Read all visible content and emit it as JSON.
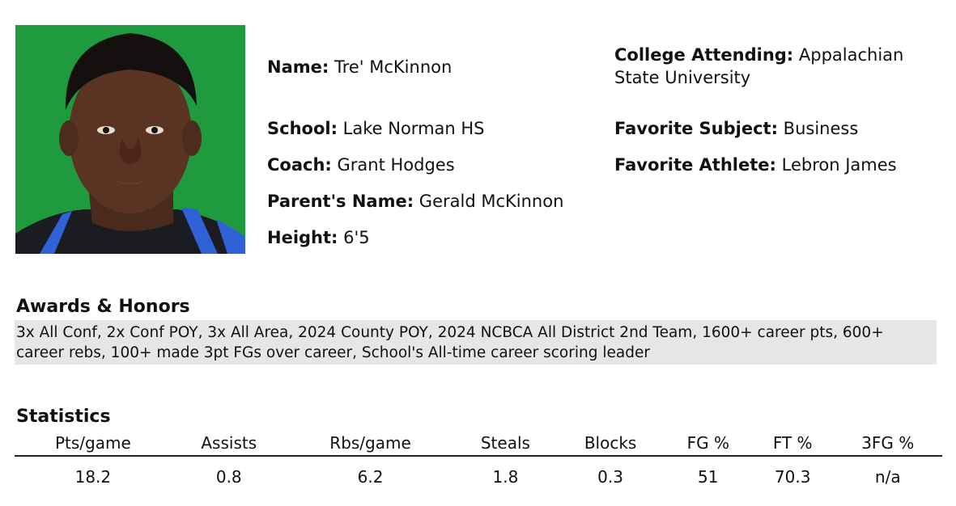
{
  "profile": {
    "name_label": "Name:",
    "name_value": "Tre' McKinnon",
    "school_label": "School:",
    "school_value": "Lake Norman HS",
    "coach_label": "Coach:",
    "coach_value": "Grant Hodges",
    "parent_label": "Parent's Name:",
    "parent_value": "Gerald McKinnon",
    "height_label": "Height:",
    "height_value": "6'5",
    "college_label": "College Attending:",
    "college_value": "Appalachian State University",
    "subject_label": "Favorite Subject:",
    "subject_value": "Business",
    "athlete_label": "Favorite Athlete:",
    "athlete_value": "Lebron James"
  },
  "awards": {
    "title": "Awards & Honors",
    "text": "3x All Conf, 2x Conf POY, 3x All Area, 2024 County POY, 2024 NCBCA All District 2nd Team, 1600+ career pts, 600+ career rebs, 100+ made 3pt FGs over career, School's All-time career scoring leader"
  },
  "statistics": {
    "title": "Statistics",
    "headers": [
      "Pts/game",
      "Assists",
      "Rbs/game",
      "Steals",
      "Blocks",
      "FG %",
      "FT %",
      "3FG %"
    ],
    "values": [
      "18.2",
      "0.8",
      "6.2",
      "1.8",
      "0.3",
      "51",
      "70.3",
      "n/a"
    ]
  },
  "colors": {
    "photo_background": "#1f9a3f",
    "awards_background": "#e6e6e6"
  },
  "icons": {
    "photo": "player-headshot-photo"
  }
}
